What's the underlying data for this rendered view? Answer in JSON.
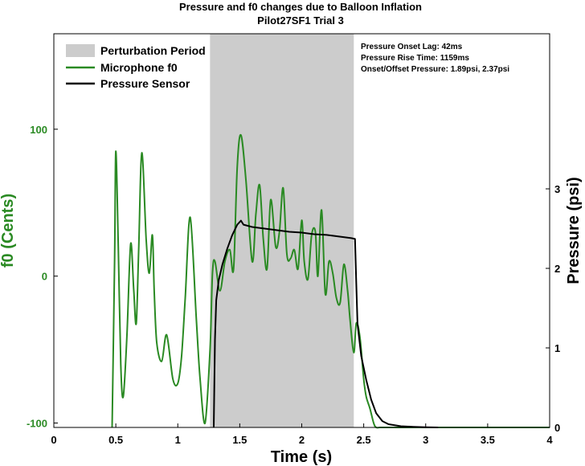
{
  "chart_data": {
    "type": "line",
    "title": "Pressure and f0 changes due to Balloon Inflation",
    "subtitle": "Pilot27SF1 Trial 3",
    "xlabel": "Time (s)",
    "ylabel_left": "f0 (Cents)",
    "ylabel_right": "Pressure (psi)",
    "xlim": [
      0,
      4
    ],
    "ylim_left": [
      -103,
      165
    ],
    "ylim_right": [
      0,
      4.95
    ],
    "x_ticks": [
      "0",
      "0.5",
      "1",
      "1.5",
      "2",
      "2.5",
      "3",
      "3.5",
      "4"
    ],
    "y_left_ticks": [
      "-100",
      "0",
      "100"
    ],
    "y_right_ticks": [
      "0",
      "1",
      "2",
      "3"
    ],
    "grid": false,
    "legend_position": "top-left",
    "legend": [
      {
        "label": "Perturbation Period",
        "color": "#cccccc",
        "kind": "patch"
      },
      {
        "label": "Microphone f0",
        "color": "#2a8a23",
        "kind": "line"
      },
      {
        "label": "Pressure Sensor",
        "color": "#000000",
        "kind": "line"
      }
    ],
    "annotations": [
      "Pressure Onset Lag: 42ms",
      "Pressure Rise Time: 1159ms",
      "Onset/Offset Pressure: 1.89psi, 2.37psi"
    ],
    "perturbation_period": [
      1.26,
      2.42
    ],
    "series": [
      {
        "name": "Microphone f0",
        "axis": "left",
        "color": "#2a8a23",
        "x": [
          0.47,
          0.49,
          0.5,
          0.52,
          0.54,
          0.56,
          0.59,
          0.62,
          0.645,
          0.665,
          0.685,
          0.71,
          0.745,
          0.77,
          0.795,
          0.81,
          0.83,
          0.87,
          0.91,
          0.96,
          1.0,
          1.03,
          1.06,
          1.1,
          1.15,
          1.18,
          1.22,
          1.26,
          1.28,
          1.3,
          1.34,
          1.38,
          1.42,
          1.45,
          1.48,
          1.51,
          1.55,
          1.6,
          1.63,
          1.66,
          1.69,
          1.72,
          1.75,
          1.79,
          1.82,
          1.85,
          1.88,
          1.91,
          1.94,
          1.97,
          2.0,
          2.02,
          2.05,
          2.08,
          2.11,
          2.13,
          2.16,
          2.19,
          2.22,
          2.25,
          2.28,
          2.31,
          2.34,
          2.37,
          2.39,
          2.42,
          2.44,
          2.47,
          2.5,
          2.52,
          2.55,
          2.58,
          2.6,
          2.63,
          2.65,
          2.68,
          2.72,
          2.75,
          2.78,
          2.8,
          2.82,
          2.85,
          2.88,
          2.91,
          2.94,
          2.97,
          3.0,
          3.03,
          3.06,
          3.08,
          3.12,
          3.15,
          3.18,
          3.2,
          3.23,
          3.27,
          3.3,
          3.32,
          3.35,
          3.38,
          3.41,
          3.44,
          3.47,
          3.5,
          3.53,
          3.56,
          3.6,
          3.63,
          3.66,
          3.69,
          3.72,
          3.75,
          3.78,
          3.8,
          3.82,
          3.85,
          3.88,
          3.9,
          3.93,
          3.96,
          3.98,
          3.99,
          4.0
        ],
        "y": [
          -103,
          10,
          85,
          20,
          -60,
          -82,
          -40,
          22,
          -10,
          -32,
          20,
          84,
          25,
          2,
          28,
          -10,
          -45,
          -58,
          -40,
          -70,
          -73,
          -55,
          -15,
          40,
          -30,
          -70,
          -100,
          -50,
          2,
          10,
          -10,
          10,
          18,
          5,
          75,
          96,
          65,
          10,
          42,
          62,
          25,
          5,
          52,
          20,
          30,
          60,
          15,
          12,
          18,
          5,
          38,
          10,
          -2,
          28,
          30,
          0,
          45,
          -12,
          10,
          2,
          -15,
          -18,
          8,
          -10,
          -30,
          -52,
          -32,
          -42,
          -70,
          -82,
          -90,
          -100,
          -103,
          -103,
          -103,
          -103,
          -103,
          -103,
          -103,
          -103,
          -103,
          -103,
          -103,
          -103,
          -103,
          -103,
          -103,
          -103,
          -103,
          -103,
          -103,
          -103,
          -103,
          -103,
          -103,
          -103,
          -103,
          -103,
          -103,
          -103,
          -103,
          -103,
          -103,
          -103,
          -103,
          -103,
          -103,
          -103,
          -103,
          -103,
          -103,
          -103,
          -103,
          -103,
          -103,
          -103,
          -103,
          -103,
          -103,
          -103,
          -103,
          -103,
          -103
        ]
      },
      {
        "name": "Pressure Sensor",
        "axis": "right",
        "color": "#000000",
        "x": [
          1.29,
          1.3,
          1.31,
          1.33,
          1.36,
          1.4,
          1.44,
          1.48,
          1.51,
          1.53,
          1.6,
          1.7,
          1.8,
          1.9,
          2.0,
          2.1,
          2.2,
          2.3,
          2.4,
          2.43,
          2.44,
          2.45,
          2.48,
          2.52,
          2.56,
          2.6,
          2.65,
          2.7,
          2.8,
          2.9,
          3.0,
          3.1
        ],
        "y": [
          0.0,
          1.1,
          1.6,
          1.85,
          2.05,
          2.25,
          2.42,
          2.55,
          2.6,
          2.55,
          2.52,
          2.5,
          2.48,
          2.46,
          2.45,
          2.43,
          2.42,
          2.4,
          2.38,
          2.37,
          1.8,
          1.3,
          0.9,
          0.6,
          0.35,
          0.18,
          0.08,
          0.04,
          0.015,
          0.008,
          0.003,
          0.0
        ]
      }
    ]
  }
}
